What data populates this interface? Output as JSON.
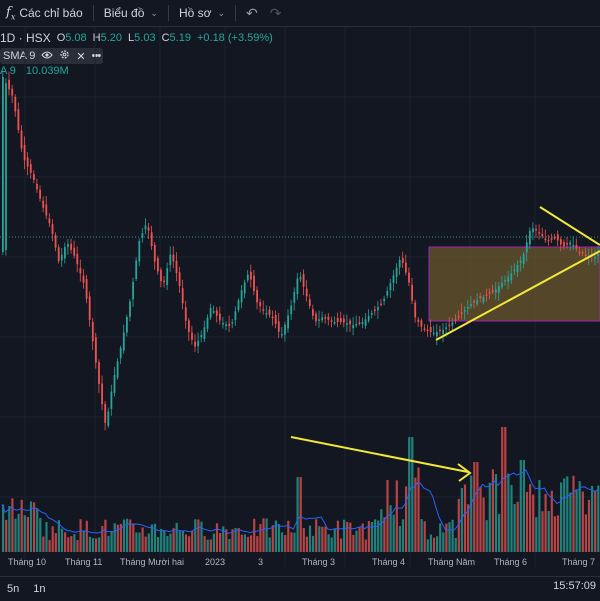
{
  "toolbar": {
    "indicators_label": "Các chỉ báo",
    "chart_label": "Biểu đồ",
    "profile_label": "Hồ sơ"
  },
  "legend": {
    "symbol": "1D · HSX",
    "open_label": "O",
    "open": "5.08",
    "high_label": "H",
    "high": "5.20",
    "low_label": "L",
    "low": "5.03",
    "close_label": "C",
    "close": "5.19",
    "change": "+0.18 (+3.59%)",
    "sma_label": "SMA 9",
    "vol_label": "A 9",
    "vol_value": "10.039M"
  },
  "x_axis": {
    "labels": [
      "Tháng 10",
      "Tháng 11",
      "Tháng Mười hai",
      "2023",
      "3",
      "Tháng 3",
      "Tháng 4",
      "Tháng Năm",
      "Tháng 6",
      "Tháng 7"
    ]
  },
  "bottom": {
    "range_5d": "5n",
    "range_1d": "1n",
    "time": "15:57:09"
  },
  "colors": {
    "up": "#26a69a",
    "down": "#ef5350",
    "annotation": "#f2e839",
    "box_fill": "#8a6d2e",
    "box_border": "#9c27b0",
    "sma": "#2962ff"
  }
}
